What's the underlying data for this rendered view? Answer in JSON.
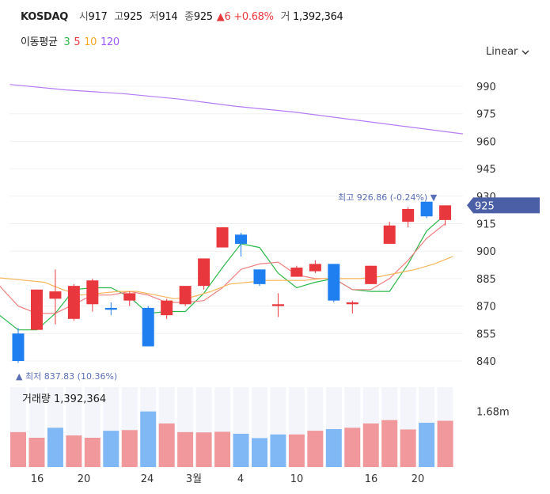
{
  "header": {
    "symbol": "KOSDAQ",
    "open_label": "시",
    "open": "917",
    "high_label": "고",
    "high": "925",
    "low_label": "저",
    "low": "914",
    "close_label": "종",
    "close": "925",
    "change_arrow": "▲",
    "change": "6",
    "change_pct": "+0.68%",
    "volume_label": "거",
    "volume": "1,392,364"
  },
  "ma_legend": {
    "label": "이동평균",
    "items": [
      {
        "period": "3",
        "color": "#2db84b"
      },
      {
        "period": "5",
        "color": "#e8383d"
      },
      {
        "period": "10",
        "color": "#f5a623"
      },
      {
        "period": "120",
        "color": "#9b59f6"
      }
    ]
  },
  "scale_selector": {
    "value": "Linear",
    "icon": "chevron-down-icon"
  },
  "colors": {
    "up": "#e8383d",
    "down": "#1f7ef0",
    "vol_up": "#f0989b",
    "vol_down": "#7fb8f5",
    "last_tag": "#4b5fa6"
  },
  "chart_data": {
    "type": "candlestick",
    "y_axis": {
      "ticks": [
        840,
        855,
        870,
        885,
        900,
        915,
        930,
        945,
        960,
        975,
        990
      ],
      "range": [
        835,
        998
      ]
    },
    "x_tick_labels": [
      "16",
      "20",
      "24",
      "3월",
      "4",
      "10",
      "16",
      "20"
    ],
    "candles": [
      {
        "o": 855,
        "h": 858,
        "l": 839,
        "c": 840
      },
      {
        "o": 857,
        "h": 879,
        "l": 857,
        "c": 879
      },
      {
        "o": 874,
        "h": 890,
        "l": 860,
        "c": 878
      },
      {
        "o": 863,
        "h": 882,
        "l": 862,
        "c": 881
      },
      {
        "o": 871,
        "h": 885,
        "l": 867,
        "c": 884
      },
      {
        "o": 869,
        "h": 872,
        "l": 865,
        "c": 868
      },
      {
        "o": 873,
        "h": 878,
        "l": 870,
        "c": 877
      },
      {
        "o": 869,
        "h": 870,
        "l": 848,
        "c": 848
      },
      {
        "o": 865,
        "h": 874,
        "l": 863,
        "c": 873
      },
      {
        "o": 871,
        "h": 881,
        "l": 870,
        "c": 881
      },
      {
        "o": 881,
        "h": 896,
        "l": 879,
        "c": 896
      },
      {
        "o": 902,
        "h": 913,
        "l": 902,
        "c": 913
      },
      {
        "o": 909,
        "h": 910,
        "l": 897,
        "c": 904
      },
      {
        "o": 890,
        "h": 890,
        "l": 881,
        "c": 882
      },
      {
        "o": 870,
        "h": 877,
        "l": 864,
        "c": 871
      },
      {
        "o": 886,
        "h": 892,
        "l": 886,
        "c": 891
      },
      {
        "o": 889,
        "h": 895,
        "l": 888,
        "c": 893
      },
      {
        "o": 893,
        "h": 893,
        "l": 872,
        "c": 873
      },
      {
        "o": 871,
        "h": 873,
        "l": 866,
        "c": 872
      },
      {
        "o": 882,
        "h": 892,
        "l": 882,
        "c": 892
      },
      {
        "o": 904,
        "h": 916,
        "l": 904,
        "c": 914
      },
      {
        "o": 916,
        "h": 924,
        "l": 913,
        "c": 923
      },
      {
        "o": 927,
        "h": 927,
        "l": 918,
        "c": 919
      },
      {
        "o": 917,
        "h": 925,
        "l": 914,
        "c": 925
      }
    ],
    "ma": {
      "ma3": [
        865,
        857,
        857,
        866,
        879,
        880,
        880,
        875,
        866,
        867,
        867,
        877,
        891,
        904,
        902,
        888,
        880,
        883,
        885,
        879,
        878,
        878,
        893,
        911,
        920
      ],
      "ma5": [
        881,
        870,
        866,
        866,
        871,
        876,
        876,
        878,
        876,
        872,
        872,
        873,
        880,
        890,
        893,
        894,
        887,
        885,
        885,
        879,
        879,
        885,
        895,
        907,
        915
      ],
      "ma10": [
        886,
        885,
        884,
        883,
        879,
        876,
        877,
        878,
        878,
        876,
        874,
        875,
        878,
        882,
        883,
        884,
        884,
        884,
        885,
        885,
        885,
        886,
        888,
        890,
        893,
        897
      ],
      "ma120": [
        991,
        988,
        986,
        983,
        979,
        976,
        972,
        968,
        964
      ]
    },
    "annotations": {
      "high": {
        "label": "최고",
        "value": "926.86",
        "pct": "(-0.24%)",
        "marker": "▼"
      },
      "low": {
        "label": "최저",
        "value": "837.83",
        "pct": "(10.36%)",
        "marker": "▲"
      },
      "last_price": "925"
    },
    "volume": {
      "title": "거래량",
      "value": "1,392,364",
      "axis_label": "1.68m",
      "max_m": 2.4,
      "values_m": [
        1.05,
        0.88,
        1.18,
        0.95,
        0.88,
        1.09,
        1.11,
        1.67,
        1.31,
        1.05,
        1.04,
        1.06,
        1.0,
        0.87,
        0.98,
        0.98,
        1.09,
        1.14,
        1.18,
        1.31,
        1.41,
        1.13,
        1.33,
        1.39
      ],
      "up": [
        true,
        true,
        false,
        true,
        true,
        false,
        true,
        false,
        true,
        true,
        true,
        true,
        false,
        false,
        false,
        true,
        true,
        false,
        true,
        true,
        true,
        true,
        false,
        true
      ]
    }
  }
}
